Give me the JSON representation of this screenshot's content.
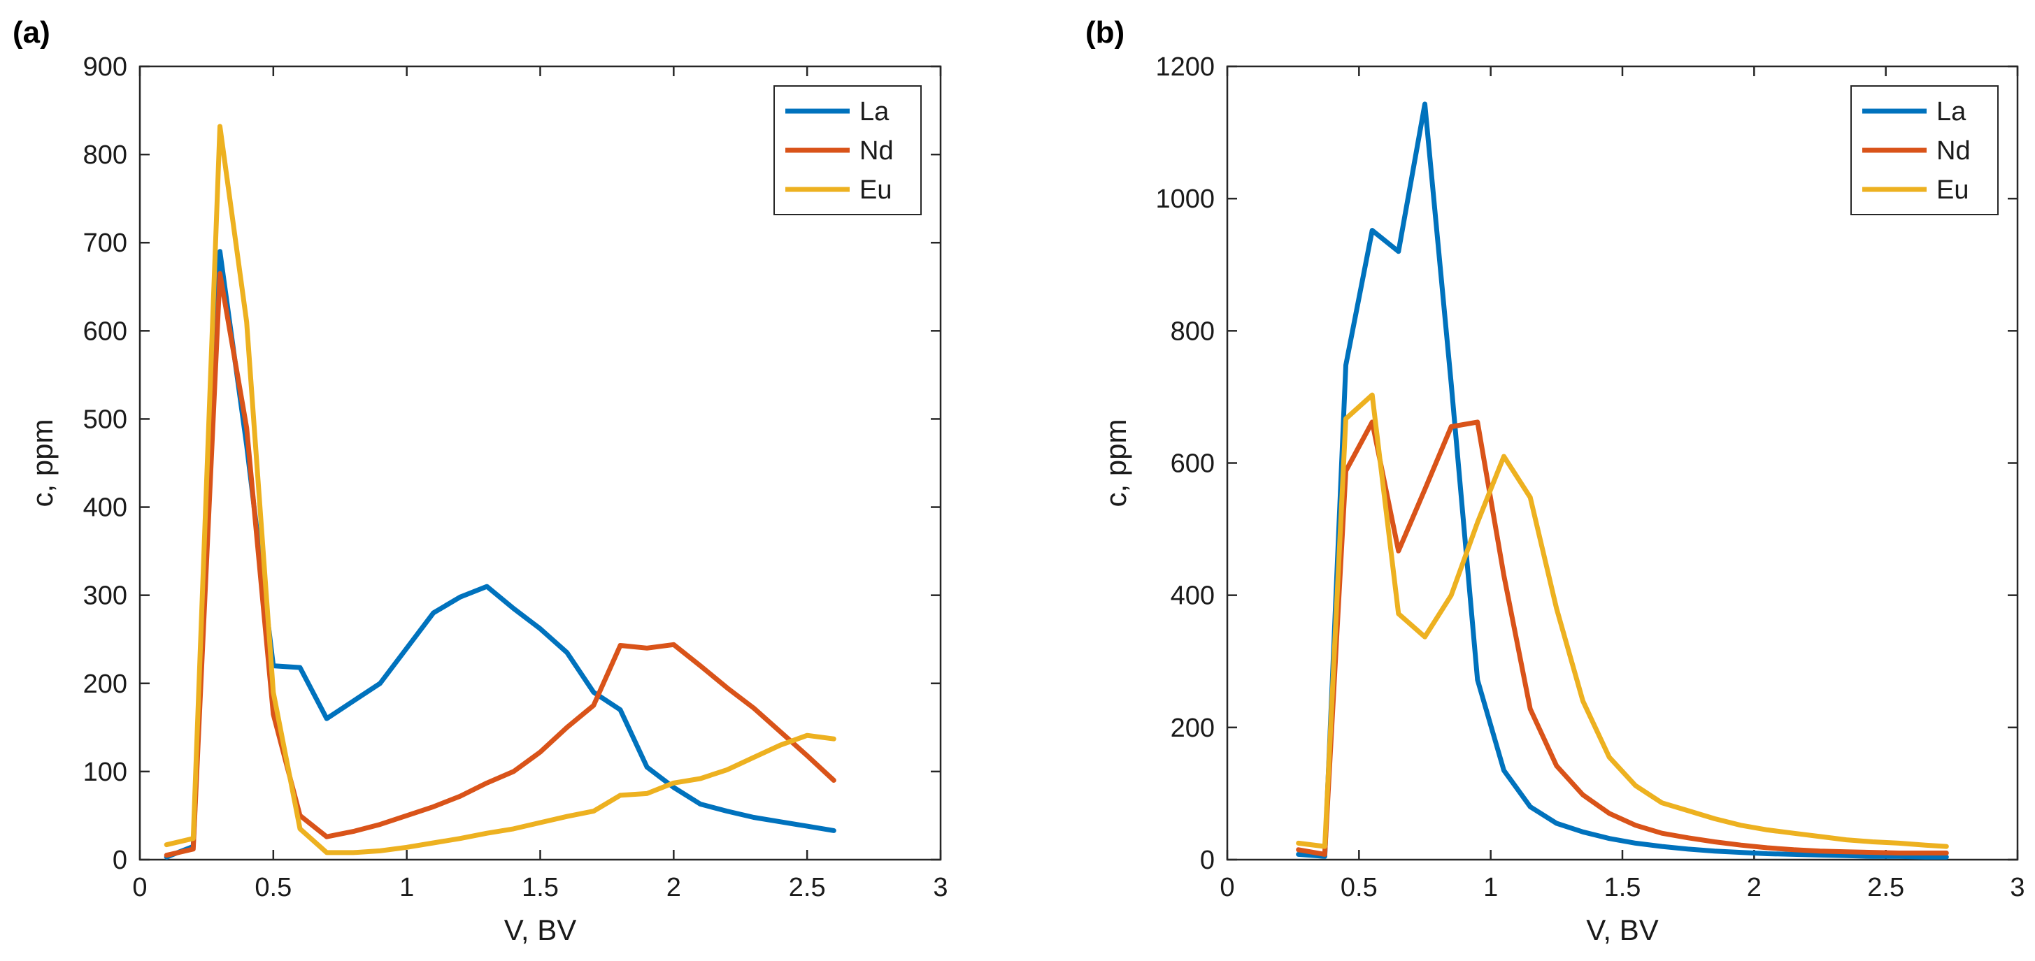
{
  "chart_data": [
    {
      "panel_label": "(a)",
      "type": "line",
      "title": "",
      "xlabel": "V, BV",
      "ylabel": "c, ppm",
      "xlim": [
        0,
        3
      ],
      "ylim": [
        0,
        900
      ],
      "xticks": [
        0,
        0.5,
        1,
        1.5,
        2,
        2.5,
        3
      ],
      "xtick_labels": [
        "0",
        "0.5",
        "1",
        "1.5",
        "2",
        "2.5",
        "3"
      ],
      "yticks": [
        0,
        100,
        200,
        300,
        400,
        500,
        600,
        700,
        800,
        900
      ],
      "ytick_labels": [
        "0",
        "100",
        "200",
        "300",
        "400",
        "500",
        "600",
        "700",
        "800",
        "900"
      ],
      "grid": false,
      "legend_position": "top-right",
      "series": [
        {
          "name": "La",
          "color": "#0072BD",
          "x": [
            0.1,
            0.2,
            0.3,
            0.4,
            0.5,
            0.6,
            0.7,
            0.8,
            0.9,
            1.0,
            1.1,
            1.2,
            1.3,
            1.4,
            1.5,
            1.6,
            1.7,
            1.8,
            1.9,
            2.0,
            2.1,
            2.2,
            2.3,
            2.4,
            2.5,
            2.6
          ],
          "y": [
            3,
            15,
            690,
            470,
            220,
            218,
            160,
            180,
            200,
            240,
            280,
            298,
            310,
            285,
            262,
            235,
            190,
            170,
            105,
            82,
            63,
            55,
            48,
            43,
            38,
            33
          ]
        },
        {
          "name": "Nd",
          "color": "#D95319",
          "x": [
            0.1,
            0.2,
            0.3,
            0.4,
            0.5,
            0.6,
            0.7,
            0.8,
            0.9,
            1.0,
            1.1,
            1.2,
            1.3,
            1.4,
            1.5,
            1.6,
            1.7,
            1.8,
            1.9,
            2.0,
            2.1,
            2.2,
            2.3,
            2.4,
            2.5,
            2.6
          ],
          "y": [
            5,
            12,
            665,
            490,
            165,
            50,
            26,
            32,
            40,
            50,
            60,
            72,
            87,
            100,
            122,
            150,
            175,
            243,
            240,
            244,
            220,
            195,
            172,
            145,
            118,
            90
          ]
        },
        {
          "name": "Eu",
          "color": "#EDB120",
          "x": [
            0.1,
            0.2,
            0.3,
            0.4,
            0.5,
            0.6,
            0.7,
            0.8,
            0.9,
            1.0,
            1.1,
            1.2,
            1.3,
            1.4,
            1.5,
            1.6,
            1.7,
            1.8,
            1.9,
            2.0,
            2.1,
            2.2,
            2.3,
            2.4,
            2.5,
            2.6
          ],
          "y": [
            17,
            24,
            832,
            610,
            190,
            35,
            8,
            8,
            10,
            14,
            19,
            24,
            30,
            35,
            42,
            49,
            55,
            73,
            75,
            87,
            92,
            102,
            116,
            130,
            141,
            137
          ]
        }
      ]
    },
    {
      "panel_label": "(b)",
      "type": "line",
      "title": "",
      "xlabel": "V, BV",
      "ylabel": "c, ppm",
      "xlim": [
        0,
        3
      ],
      "ylim": [
        0,
        1200
      ],
      "xticks": [
        0,
        0.5,
        1,
        1.5,
        2,
        2.5,
        3
      ],
      "xtick_labels": [
        "0",
        "0.5",
        "1",
        "1.5",
        "2",
        "2.5",
        "3"
      ],
      "yticks": [
        0,
        200,
        400,
        600,
        800,
        1000,
        1200
      ],
      "ytick_labels": [
        "0",
        "200",
        "400",
        "600",
        "800",
        "1000",
        "1200"
      ],
      "grid": false,
      "legend_position": "top-right",
      "series": [
        {
          "name": "La",
          "color": "#0072BD",
          "x": [
            0.27,
            0.37,
            0.45,
            0.55,
            0.65,
            0.75,
            0.85,
            0.95,
            1.05,
            1.15,
            1.25,
            1.35,
            1.45,
            1.55,
            1.65,
            1.75,
            1.85,
            1.95,
            2.05,
            2.15,
            2.25,
            2.35,
            2.45,
            2.55,
            2.65,
            2.73
          ],
          "y": [
            8,
            5,
            748,
            952,
            920,
            1143,
            720,
            272,
            135,
            80,
            55,
            42,
            32,
            25,
            20,
            16,
            13,
            11,
            9,
            8,
            7,
            6,
            5,
            5,
            4,
            4
          ]
        },
        {
          "name": "Nd",
          "color": "#D95319",
          "x": [
            0.27,
            0.37,
            0.45,
            0.55,
            0.65,
            0.75,
            0.85,
            0.95,
            1.05,
            1.15,
            1.25,
            1.35,
            1.45,
            1.55,
            1.65,
            1.75,
            1.85,
            1.95,
            2.05,
            2.15,
            2.25,
            2.35,
            2.45,
            2.55,
            2.65,
            2.73
          ],
          "y": [
            15,
            8,
            588,
            662,
            467,
            560,
            655,
            662,
            430,
            228,
            142,
            98,
            70,
            52,
            40,
            33,
            27,
            22,
            18,
            15,
            13,
            12,
            11,
            10,
            10,
            10
          ]
        },
        {
          "name": "Eu",
          "color": "#EDB120",
          "x": [
            0.27,
            0.37,
            0.45,
            0.55,
            0.65,
            0.75,
            0.85,
            0.95,
            1.05,
            1.15,
            1.25,
            1.35,
            1.45,
            1.55,
            1.65,
            1.75,
            1.85,
            1.95,
            2.05,
            2.15,
            2.25,
            2.35,
            2.45,
            2.55,
            2.65,
            2.73
          ],
          "y": [
            25,
            20,
            667,
            703,
            372,
            337,
            400,
            510,
            610,
            548,
            380,
            240,
            155,
            112,
            86,
            74,
            62,
            52,
            45,
            40,
            35,
            30,
            27,
            25,
            22,
            20
          ]
        }
      ]
    }
  ]
}
